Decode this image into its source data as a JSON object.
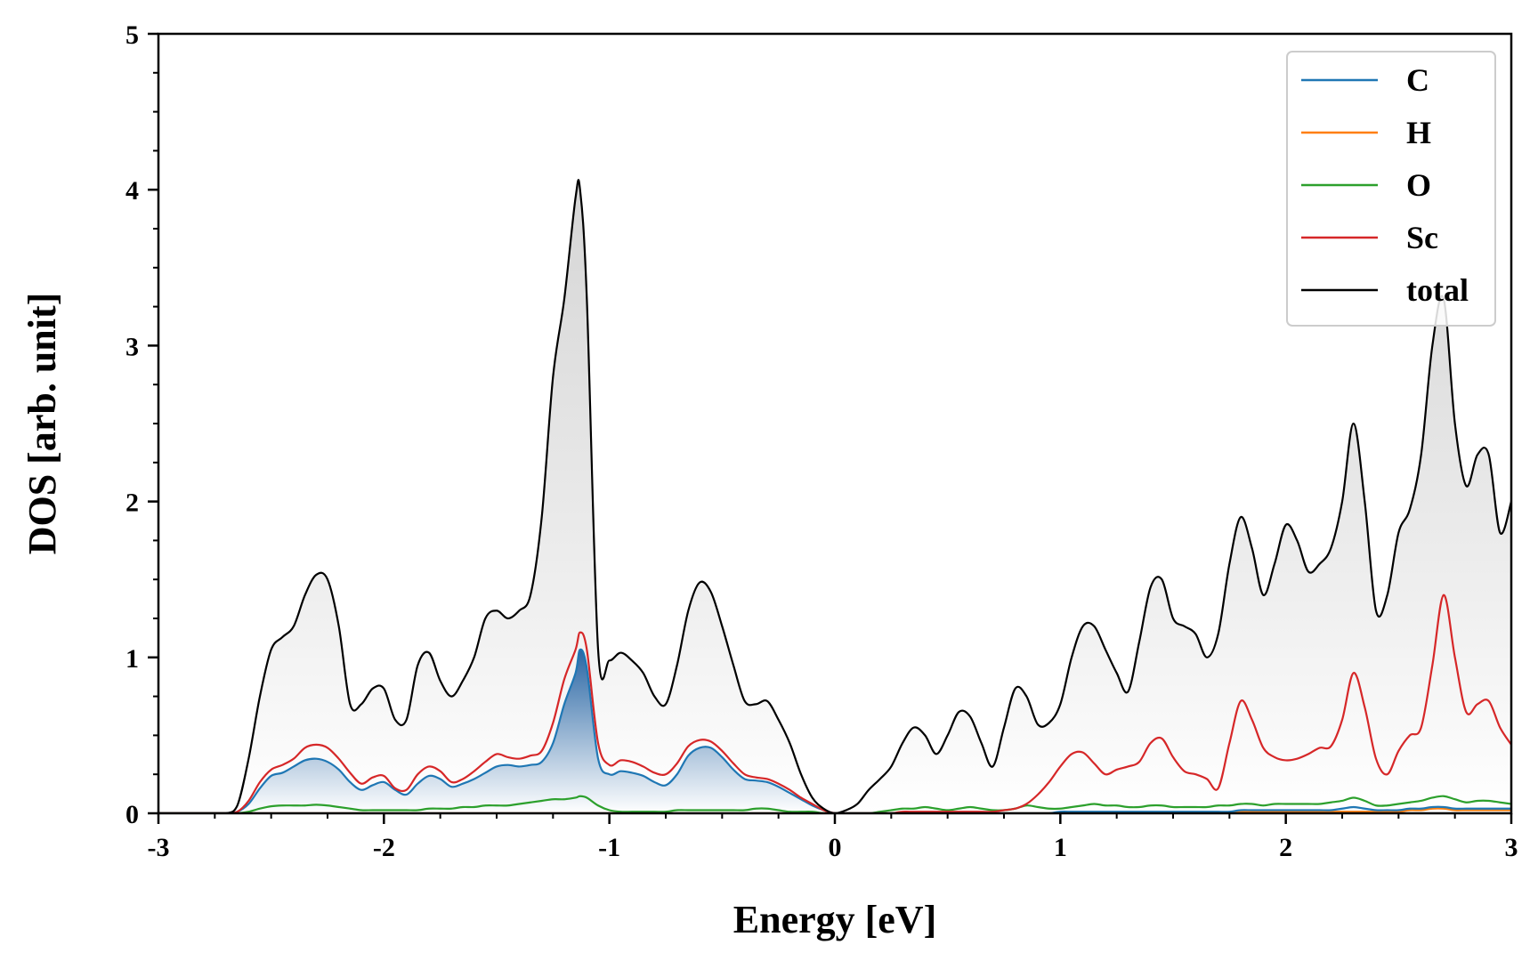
{
  "chart_data": {
    "type": "area",
    "title": "",
    "xlabel": "Energy [eV]",
    "ylabel": "DOS [arb. unit]",
    "xlim": [
      -3,
      3
    ],
    "ylim": [
      0,
      5
    ],
    "xticks": [
      -3,
      -2,
      -1,
      0,
      1,
      2,
      3
    ],
    "xtick_labels": [
      "-3",
      "-2",
      "-1",
      "0",
      "1",
      "2",
      "3"
    ],
    "yticks": [
      0,
      1,
      2,
      3,
      4,
      5
    ],
    "ytick_labels": [
      "0",
      "1",
      "2",
      "3",
      "4",
      "5"
    ],
    "grid": false,
    "legend_position": "top-right",
    "x": [
      -3.0,
      -2.9,
      -2.8,
      -2.7,
      -2.65,
      -2.6,
      -2.55,
      -2.5,
      -2.45,
      -2.4,
      -2.35,
      -2.3,
      -2.25,
      -2.2,
      -2.15,
      -2.1,
      -2.05,
      -2.0,
      -1.95,
      -1.9,
      -1.85,
      -1.8,
      -1.75,
      -1.7,
      -1.65,
      -1.6,
      -1.55,
      -1.5,
      -1.45,
      -1.4,
      -1.35,
      -1.3,
      -1.25,
      -1.2,
      -1.15,
      -1.13,
      -1.1,
      -1.05,
      -1.0,
      -0.95,
      -0.9,
      -0.85,
      -0.8,
      -0.75,
      -0.7,
      -0.65,
      -0.6,
      -0.55,
      -0.5,
      -0.45,
      -0.4,
      -0.35,
      -0.3,
      -0.25,
      -0.2,
      -0.15,
      -0.1,
      -0.05,
      0.0,
      0.05,
      0.1,
      0.15,
      0.2,
      0.25,
      0.3,
      0.35,
      0.4,
      0.45,
      0.5,
      0.55,
      0.6,
      0.65,
      0.7,
      0.75,
      0.8,
      0.85,
      0.9,
      0.95,
      1.0,
      1.05,
      1.1,
      1.15,
      1.2,
      1.25,
      1.3,
      1.35,
      1.4,
      1.45,
      1.5,
      1.55,
      1.6,
      1.65,
      1.7,
      1.75,
      1.8,
      1.85,
      1.9,
      1.95,
      2.0,
      2.05,
      2.1,
      2.15,
      2.2,
      2.25,
      2.3,
      2.35,
      2.4,
      2.45,
      2.5,
      2.55,
      2.6,
      2.65,
      2.7,
      2.75,
      2.8,
      2.85,
      2.9,
      2.95,
      3.0
    ],
    "series": [
      {
        "name": "C",
        "color": "#1f77b4",
        "filled": true,
        "values": [
          0,
          0,
          0,
          0,
          0.01,
          0.06,
          0.16,
          0.24,
          0.26,
          0.3,
          0.34,
          0.35,
          0.33,
          0.28,
          0.2,
          0.15,
          0.18,
          0.2,
          0.15,
          0.12,
          0.19,
          0.24,
          0.22,
          0.17,
          0.19,
          0.22,
          0.26,
          0.3,
          0.31,
          0.3,
          0.31,
          0.33,
          0.45,
          0.7,
          0.9,
          1.05,
          0.93,
          0.35,
          0.25,
          0.27,
          0.26,
          0.24,
          0.2,
          0.18,
          0.25,
          0.37,
          0.42,
          0.42,
          0.36,
          0.28,
          0.22,
          0.21,
          0.2,
          0.17,
          0.13,
          0.09,
          0.05,
          0.02,
          0,
          0,
          0,
          0,
          0,
          0,
          0,
          0,
          0,
          0,
          0,
          0,
          0,
          0,
          0,
          0,
          0,
          0,
          0,
          0,
          0.01,
          0.01,
          0.01,
          0.01,
          0.01,
          0.01,
          0.01,
          0.01,
          0.01,
          0.01,
          0.01,
          0.01,
          0.01,
          0.01,
          0.01,
          0.01,
          0.02,
          0.02,
          0.02,
          0.02,
          0.02,
          0.02,
          0.02,
          0.02,
          0.02,
          0.03,
          0.04,
          0.03,
          0.02,
          0.02,
          0.02,
          0.03,
          0.03,
          0.04,
          0.04,
          0.03,
          0.03,
          0.03,
          0.03,
          0.03,
          0.03
        ]
      },
      {
        "name": "H",
        "color": "#ff7f0e",
        "filled": false,
        "values": [
          0,
          0,
          0,
          0,
          0,
          0,
          0,
          0,
          0,
          0,
          0,
          0,
          0,
          0,
          0,
          0,
          0,
          0,
          0,
          0,
          0,
          0,
          0,
          0,
          0,
          0,
          0,
          0,
          0,
          0,
          0,
          0,
          0,
          0,
          0,
          0,
          0,
          0,
          0,
          0,
          0,
          0,
          0,
          0,
          0,
          0,
          0,
          0,
          0,
          0,
          0,
          0,
          0,
          0,
          0,
          0,
          0,
          0,
          0,
          0,
          0,
          0,
          0,
          0,
          0,
          0,
          0,
          0,
          0,
          0,
          0,
          0,
          0,
          0,
          0,
          0,
          0,
          0,
          0,
          0,
          0,
          0,
          0,
          0,
          0,
          0,
          0,
          0,
          0,
          0,
          0,
          0,
          0,
          0,
          0.01,
          0.01,
          0.01,
          0.01,
          0.01,
          0.01,
          0.01,
          0.01,
          0.01,
          0.01,
          0.01,
          0.01,
          0.01,
          0.01,
          0.01,
          0.02,
          0.02,
          0.03,
          0.03,
          0.02,
          0.02,
          0.02,
          0.02,
          0.02,
          0.02
        ]
      },
      {
        "name": "O",
        "color": "#2ca02c",
        "filled": false,
        "values": [
          0,
          0,
          0,
          0,
          0,
          0.01,
          0.03,
          0.045,
          0.05,
          0.05,
          0.05,
          0.055,
          0.05,
          0.04,
          0.03,
          0.02,
          0.02,
          0.02,
          0.02,
          0.02,
          0.02,
          0.03,
          0.03,
          0.03,
          0.04,
          0.04,
          0.05,
          0.05,
          0.05,
          0.06,
          0.07,
          0.08,
          0.09,
          0.09,
          0.1,
          0.11,
          0.1,
          0.05,
          0.02,
          0.01,
          0.01,
          0.01,
          0.01,
          0.01,
          0.02,
          0.02,
          0.02,
          0.02,
          0.02,
          0.02,
          0.02,
          0.03,
          0.03,
          0.02,
          0.01,
          0.01,
          0.01,
          0,
          0,
          0,
          0,
          0,
          0.01,
          0.02,
          0.03,
          0.03,
          0.04,
          0.03,
          0.02,
          0.03,
          0.04,
          0.03,
          0.02,
          0.02,
          0.03,
          0.05,
          0.04,
          0.03,
          0.03,
          0.04,
          0.05,
          0.06,
          0.05,
          0.05,
          0.04,
          0.04,
          0.05,
          0.05,
          0.04,
          0.04,
          0.04,
          0.04,
          0.05,
          0.05,
          0.06,
          0.06,
          0.05,
          0.06,
          0.06,
          0.06,
          0.06,
          0.06,
          0.07,
          0.08,
          0.1,
          0.08,
          0.05,
          0.05,
          0.06,
          0.07,
          0.08,
          0.1,
          0.11,
          0.09,
          0.07,
          0.08,
          0.08,
          0.07,
          0.06
        ]
      },
      {
        "name": "Sc",
        "color": "#d62728",
        "filled": false,
        "values": [
          0,
          0,
          0,
          0,
          0.01,
          0.08,
          0.2,
          0.28,
          0.31,
          0.35,
          0.42,
          0.44,
          0.42,
          0.35,
          0.26,
          0.19,
          0.23,
          0.24,
          0.16,
          0.15,
          0.25,
          0.3,
          0.27,
          0.2,
          0.22,
          0.27,
          0.33,
          0.38,
          0.36,
          0.35,
          0.37,
          0.4,
          0.58,
          0.86,
          1.05,
          1.16,
          1.05,
          0.45,
          0.31,
          0.34,
          0.33,
          0.3,
          0.26,
          0.25,
          0.32,
          0.43,
          0.47,
          0.46,
          0.4,
          0.32,
          0.25,
          0.23,
          0.22,
          0.19,
          0.15,
          0.1,
          0.06,
          0.02,
          0,
          0,
          0,
          0,
          0,
          0,
          0.01,
          0.01,
          0.01,
          0.01,
          0.01,
          0.01,
          0.01,
          0.01,
          0.01,
          0.02,
          0.03,
          0.06,
          0.12,
          0.2,
          0.3,
          0.38,
          0.39,
          0.32,
          0.25,
          0.28,
          0.3,
          0.33,
          0.45,
          0.48,
          0.36,
          0.27,
          0.25,
          0.22,
          0.16,
          0.45,
          0.72,
          0.6,
          0.42,
          0.36,
          0.34,
          0.35,
          0.38,
          0.42,
          0.43,
          0.6,
          0.9,
          0.68,
          0.35,
          0.25,
          0.4,
          0.5,
          0.55,
          0.95,
          1.4,
          1.0,
          0.65,
          0.7,
          0.72,
          0.55,
          0.44
        ]
      },
      {
        "name": "total",
        "color": "#000000",
        "filled": true,
        "values": [
          0,
          0,
          0,
          0,
          0.05,
          0.35,
          0.75,
          1.05,
          1.13,
          1.2,
          1.4,
          1.53,
          1.5,
          1.2,
          0.7,
          0.7,
          0.8,
          0.8,
          0.6,
          0.6,
          0.95,
          1.03,
          0.85,
          0.75,
          0.85,
          1.0,
          1.25,
          1.3,
          1.25,
          1.3,
          1.4,
          1.9,
          2.8,
          3.3,
          3.95,
          4.0,
          3.3,
          1.05,
          0.98,
          1.03,
          0.98,
          0.9,
          0.75,
          0.7,
          0.95,
          1.3,
          1.48,
          1.42,
          1.2,
          0.95,
          0.72,
          0.7,
          0.72,
          0.6,
          0.45,
          0.25,
          0.1,
          0.03,
          0,
          0.02,
          0.06,
          0.15,
          0.22,
          0.3,
          0.45,
          0.55,
          0.5,
          0.38,
          0.5,
          0.65,
          0.62,
          0.45,
          0.3,
          0.55,
          0.8,
          0.75,
          0.57,
          0.58,
          0.7,
          1.0,
          1.2,
          1.2,
          1.05,
          0.9,
          0.78,
          1.1,
          1.45,
          1.5,
          1.25,
          1.2,
          1.15,
          1.0,
          1.15,
          1.6,
          1.9,
          1.7,
          1.4,
          1.6,
          1.85,
          1.75,
          1.55,
          1.6,
          1.7,
          2.0,
          2.5,
          2.0,
          1.3,
          1.4,
          1.8,
          1.95,
          2.3,
          3.0,
          3.3,
          2.5,
          2.1,
          2.3,
          2.3,
          1.8,
          2.0
        ]
      }
    ]
  }
}
